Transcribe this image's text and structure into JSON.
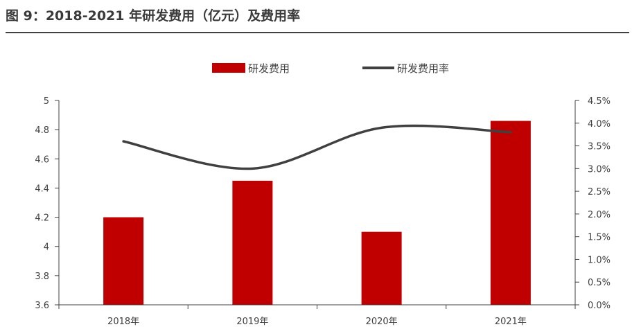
{
  "title": "图 9：2018-2021 年研发费用（亿元）及费用率",
  "chart_data": {
    "type": "bar",
    "categories": [
      "2018年",
      "2019年",
      "2020年",
      "2021年"
    ],
    "series": [
      {
        "name": "研发费用",
        "type": "bar",
        "axis": "left",
        "color": "#c00000",
        "values": [
          4.2,
          4.45,
          4.1,
          4.86
        ]
      },
      {
        "name": "研发费用率",
        "type": "line",
        "axis": "right",
        "color": "#404040",
        "values": [
          3.6,
          3.0,
          3.9,
          3.8
        ]
      }
    ],
    "y_left": {
      "range": [
        3.6,
        5
      ],
      "ticks": [
        "3.6",
        "3.8",
        "4",
        "4.2",
        "4.4",
        "4.6",
        "4.8",
        "5"
      ]
    },
    "y_right": {
      "range": [
        0,
        4.5
      ],
      "unit": "%",
      "ticks": [
        "0.0%",
        "0.5%",
        "1.0%",
        "1.5%",
        "2.0%",
        "2.5%",
        "3.0%",
        "3.5%",
        "4.0%",
        "4.5%"
      ]
    },
    "legend_position": "top"
  }
}
